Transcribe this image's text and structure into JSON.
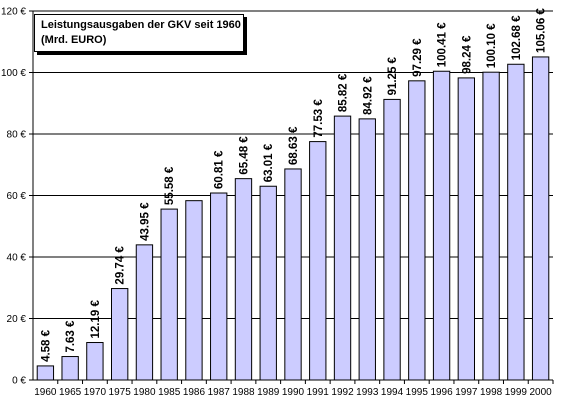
{
  "chart_data": {
    "type": "bar",
    "title": "Leistungsausgaben der GKV seit 1960",
    "subtitle": "(Mrd. EURO)",
    "categories": [
      "1960",
      "1965",
      "1970",
      "1975",
      "1980",
      "1985",
      "1986",
      "1987",
      "1988",
      "1989",
      "1990",
      "1991",
      "1992",
      "1993",
      "1994",
      "1995",
      "1996",
      "1997",
      "1998",
      "1999",
      "2000"
    ],
    "values": [
      4.58,
      7.63,
      12.19,
      29.74,
      43.95,
      55.58,
      58.32,
      60.81,
      65.48,
      63.01,
      68.63,
      77.53,
      85.82,
      84.92,
      91.25,
      97.29,
      100.41,
      98.24,
      100.1,
      102.68,
      105.06
    ],
    "data_labels": [
      "4.58 €",
      "7.63 €",
      "12.19 €",
      "29.74 €",
      "43.95 €",
      "55.58 €",
      "",
      "60.81 €",
      "65.48 €",
      "63.01 €",
      "68.63 €",
      "77.53 €",
      "85.82 €",
      "84.92 €",
      "91.25 €",
      "97.29 €",
      "100.41 €",
      "98.24 €",
      "100.10 €",
      "102.68 €",
      "105.06 €"
    ],
    "y_ticks": [
      "0 €",
      "20 €",
      "40 €",
      "60 €",
      "80 €",
      "100 €",
      "120 €"
    ],
    "y_tick_values": [
      0,
      20,
      40,
      60,
      80,
      100,
      120
    ],
    "ylim": [
      0,
      120
    ],
    "xlabel": "",
    "ylabel": "",
    "grid": true,
    "colors": {
      "bar_fill": "#ccccff",
      "bar_stroke": "#000000",
      "grid": "#000000",
      "background": "#ffffff"
    }
  }
}
